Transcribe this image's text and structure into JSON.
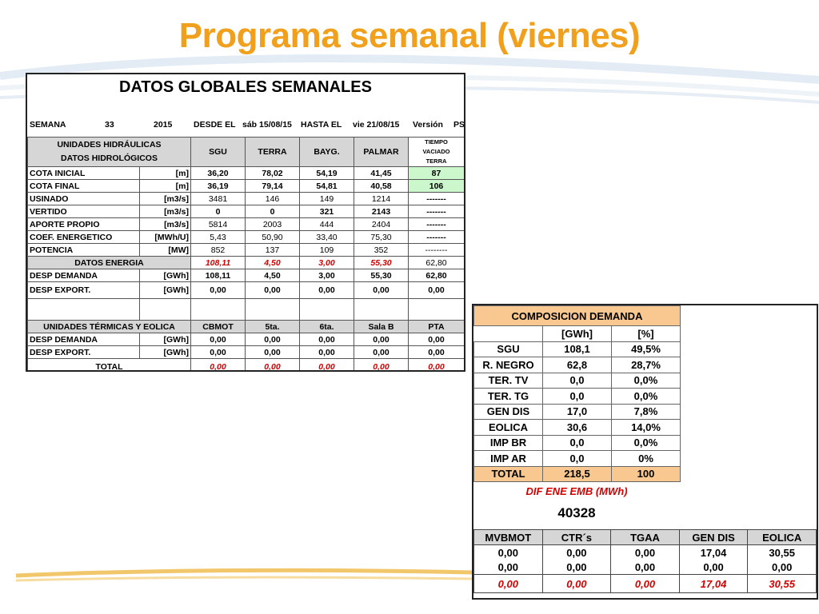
{
  "page_title": "Programa semanal (viernes)",
  "panel1": {
    "title": "DATOS GLOBALES SEMANALES",
    "semana_label": "SEMANA",
    "semana_num": "33",
    "year": "2015",
    "desde_label": "DESDE EL",
    "desde_date": "sáb 15/08/15",
    "hasta_label": "HASTA EL",
    "hasta_date": "vie 21/08/15",
    "version_label": "Versión",
    "version_val": "PS",
    "hydro_header1": "UNIDADES HIDRÁULICAS",
    "hydro_header2": "DATOS HIDROLÓGICOS",
    "cols": [
      "SGU",
      "TERRA",
      "BAYG.",
      "PALMAR"
    ],
    "tiempo": [
      "TIEMPO",
      "VACIADO",
      "TERRA"
    ],
    "rows": [
      {
        "name": "COTA INICIAL",
        "unit": "[m]",
        "vals": [
          "36,20",
          "78,02",
          "54,19",
          "41,45"
        ],
        "extra": "87"
      },
      {
        "name": "COTA FINAL",
        "unit": "[m]",
        "vals": [
          "36,19",
          "79,14",
          "54,81",
          "40,58"
        ],
        "extra": "106"
      },
      {
        "name": "USINADO",
        "unit": "[m3/s]",
        "vals": [
          "3481",
          "146",
          "149",
          "1214"
        ],
        "extra": "-------"
      },
      {
        "name": "VERTIDO",
        "unit": "[m3/s]",
        "vals": [
          "0",
          "0",
          "321",
          "2143"
        ],
        "extra": "-------"
      },
      {
        "name": "APORTE PROPIO",
        "unit": "[m3/s]",
        "vals": [
          "5814",
          "2003",
          "444",
          "2404"
        ],
        "extra": "-------"
      },
      {
        "name": "COEF. ENERGETICO",
        "unit": "[MWh/U]",
        "vals": [
          "5,43",
          "50,90",
          "33,40",
          "75,30"
        ],
        "extra": "-------"
      },
      {
        "name": "POTENCIA",
        "unit": "[MW]",
        "vals": [
          "852",
          "137",
          "109",
          "352"
        ],
        "extra": "--------"
      }
    ],
    "energia_label": "DATOS ENERGIA",
    "energia_vals": [
      "108,11",
      "4,50",
      "3,00",
      "55,30",
      "62,80"
    ],
    "desp_demanda": {
      "name": "DESP DEMANDA",
      "unit": "[GWh]",
      "vals": [
        "108,11",
        "4,50",
        "3,00",
        "55,30",
        "62,80"
      ]
    },
    "desp_export": {
      "name": "DESP EXPORT.",
      "unit": "[GWh]",
      "vals": [
        "0,00",
        "0,00",
        "0,00",
        "0,00",
        "0,00"
      ]
    },
    "termicas_header": "UNIDADES TÉRMICAS Y EOLICA",
    "termicas_cols": [
      "CBMOT",
      "5ta.",
      "6ta.",
      "Sala B",
      "PTA"
    ],
    "t_demanda": {
      "name": "DESP DEMANDA",
      "unit": "[GWh]",
      "vals": [
        "0,00",
        "0,00",
        "0,00",
        "0,00",
        "0,00"
      ]
    },
    "t_export": {
      "name": "DESP EXPORT.",
      "unit": "[GWh]",
      "vals": [
        "0,00",
        "0,00",
        "0,00",
        "0,00",
        "0,00"
      ]
    },
    "total_label": "TOTAL",
    "total_vals": [
      "0,00",
      "0,00",
      "0,00",
      "0,00",
      "0,00"
    ]
  },
  "panel2": {
    "title": "COMPOSICION DEMANDA",
    "col_gwh": "[GWh]",
    "col_pct": "[%]",
    "rows": [
      {
        "name": "SGU",
        "gwh": "108,1",
        "pct": "49,5%"
      },
      {
        "name": "R. NEGRO",
        "gwh": "62,8",
        "pct": "28,7%"
      },
      {
        "name": "TER. TV",
        "gwh": "0,0",
        "pct": "0,0%"
      },
      {
        "name": "TER. TG",
        "gwh": "0,0",
        "pct": "0,0%"
      },
      {
        "name": "GEN DIS",
        "gwh": "17,0",
        "pct": "7,8%"
      },
      {
        "name": "EOLICA",
        "gwh": "30,6",
        "pct": "14,0%"
      },
      {
        "name": "IMP BR",
        "gwh": "0,0",
        "pct": "0,0%"
      },
      {
        "name": "IMP AR",
        "gwh": "0,0",
        "pct": "0%"
      }
    ],
    "total": {
      "name": "TOTAL",
      "gwh": "218,5",
      "pct": "100"
    },
    "dif_label": "DIF ENE EMB (MWh)",
    "dif_value": "40328",
    "bottom_cols": [
      "MVBMOT",
      "CTR´s",
      "TGAA",
      "GEN DIS",
      "EOLICA"
    ],
    "bottom_row1": [
      "0,00",
      "0,00",
      "0,00",
      "17,04",
      "30,55"
    ],
    "bottom_row2": [
      "0,00",
      "0,00",
      "0,00",
      "0,00",
      "0,00"
    ],
    "bottom_total": [
      "0,00",
      "0,00",
      "0,00",
      "17,04",
      "30,55"
    ]
  },
  "colors": {
    "title": "#f0a01c",
    "red": "#d40000",
    "green_cell": "#ccf7cc",
    "orange_cell": "#f8c890",
    "header_gray": "#d6d6d6"
  }
}
